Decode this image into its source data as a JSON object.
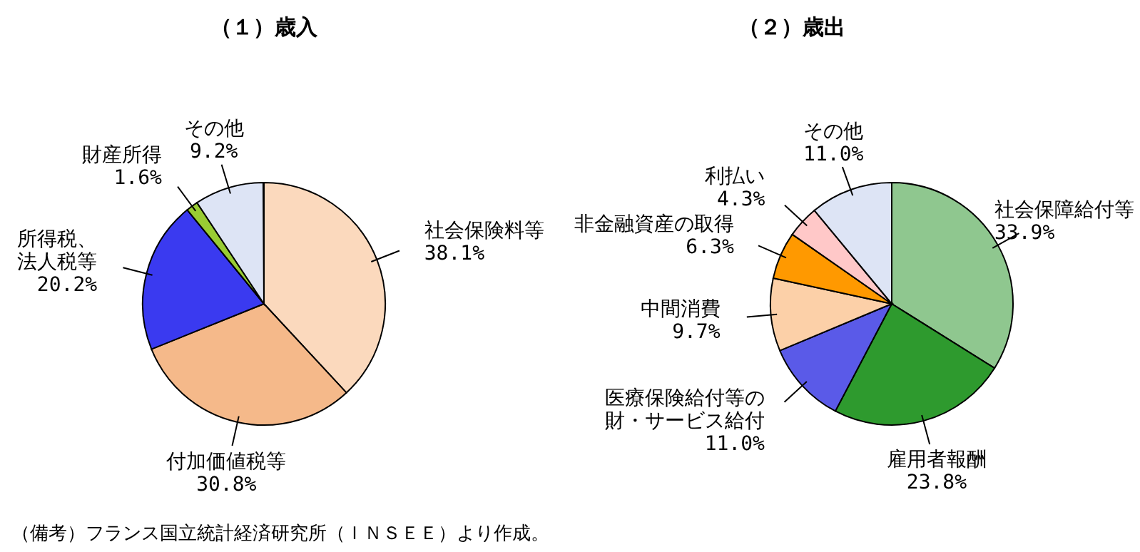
{
  "chart_data": [
    {
      "type": "pie",
      "title": "（１）歳入",
      "categories": [
        "社会保険料等",
        "付加価値税等",
        "所得税、法人税等",
        "財産所得",
        "その他"
      ],
      "values": [
        38.1,
        30.8,
        20.2,
        1.6,
        9.2
      ],
      "value_labels": [
        "38.1%",
        "30.8%",
        "20.2%",
        "1.6%",
        "9.2%"
      ],
      "colors": [
        "#fbd9bd",
        "#f5b98a",
        "#3a3af0",
        "#99cc33",
        "#dde4f5"
      ],
      "annotations": [
        "（備考）フランス国立統計経済研究所（ＩＮＳＥＥ）より作成。"
      ]
    },
    {
      "type": "pie",
      "title": "（２）歳出",
      "categories": [
        "社会保障給付等",
        "雇用者報酬",
        "医療保険給付等の財・サービス給付",
        "中間消費",
        "非金融資産の取得",
        "利払い",
        "その他"
      ],
      "values": [
        33.9,
        23.8,
        11.0,
        9.7,
        6.3,
        4.3,
        11.0
      ],
      "value_labels": [
        "33.9%",
        "23.8%",
        "11.0%",
        "9.7%",
        "6.3%",
        "4.3%",
        "11.0%"
      ],
      "colors": [
        "#8fc78f",
        "#2e9a2e",
        "#5a5ae8",
        "#fcd0a8",
        "#ff9900",
        "#ffc8c8",
        "#dde4f5"
      ]
    }
  ]
}
